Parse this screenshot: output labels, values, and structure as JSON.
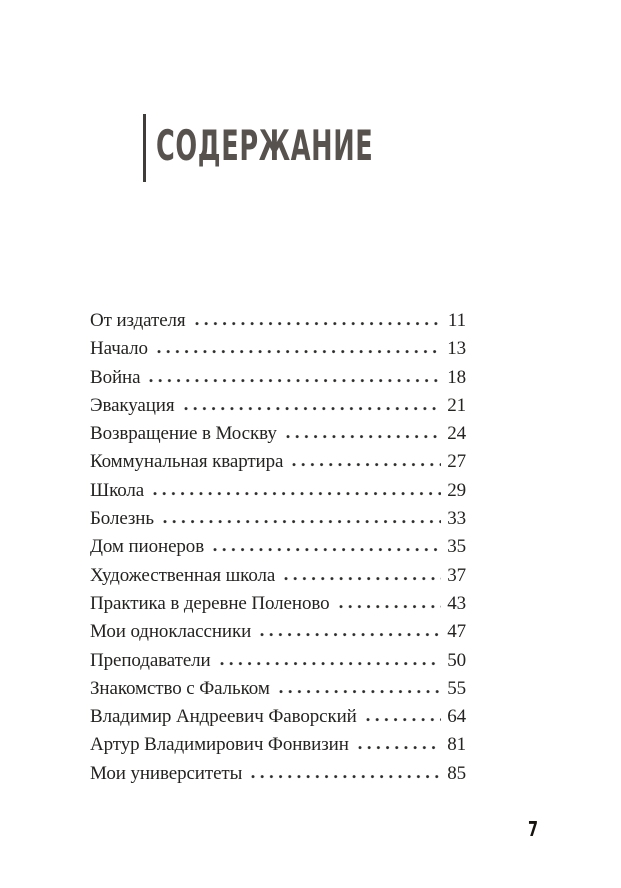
{
  "header": {
    "title": "СОДЕРЖАНИЕ"
  },
  "toc": {
    "entries": [
      {
        "title": "От издателя",
        "page": "11"
      },
      {
        "title": "Начало",
        "page": "13"
      },
      {
        "title": "Война",
        "page": "18"
      },
      {
        "title": "Эвакуация",
        "page": "21"
      },
      {
        "title": "Возвращение в Москву",
        "page": "24"
      },
      {
        "title": "Коммунальная квартира",
        "page": "27"
      },
      {
        "title": "Школа",
        "page": "29"
      },
      {
        "title": "Болезнь",
        "page": "33"
      },
      {
        "title": "Дом пионеров",
        "page": "35"
      },
      {
        "title": "Художественная школа",
        "page": "37"
      },
      {
        "title": "Практика в деревне Поленово",
        "page": "43"
      },
      {
        "title": "Мои одноклассники",
        "page": "47"
      },
      {
        "title": "Преподаватели",
        "page": "50"
      },
      {
        "title": "Знакомство с Фальком",
        "page": "55"
      },
      {
        "title": "Владимир Андреевич Фаворский",
        "page": "64"
      },
      {
        "title": "Артур Владимирович Фонвизин",
        "page": "81"
      },
      {
        "title": "Мои университеты",
        "page": "85"
      }
    ]
  },
  "footer": {
    "page_number": "7"
  },
  "colors": {
    "background": "#ffffff",
    "title_text": "#57524e",
    "accent_bar": "#3f3c3a",
    "body_text": "#242321",
    "folio_text": "#17140f"
  }
}
